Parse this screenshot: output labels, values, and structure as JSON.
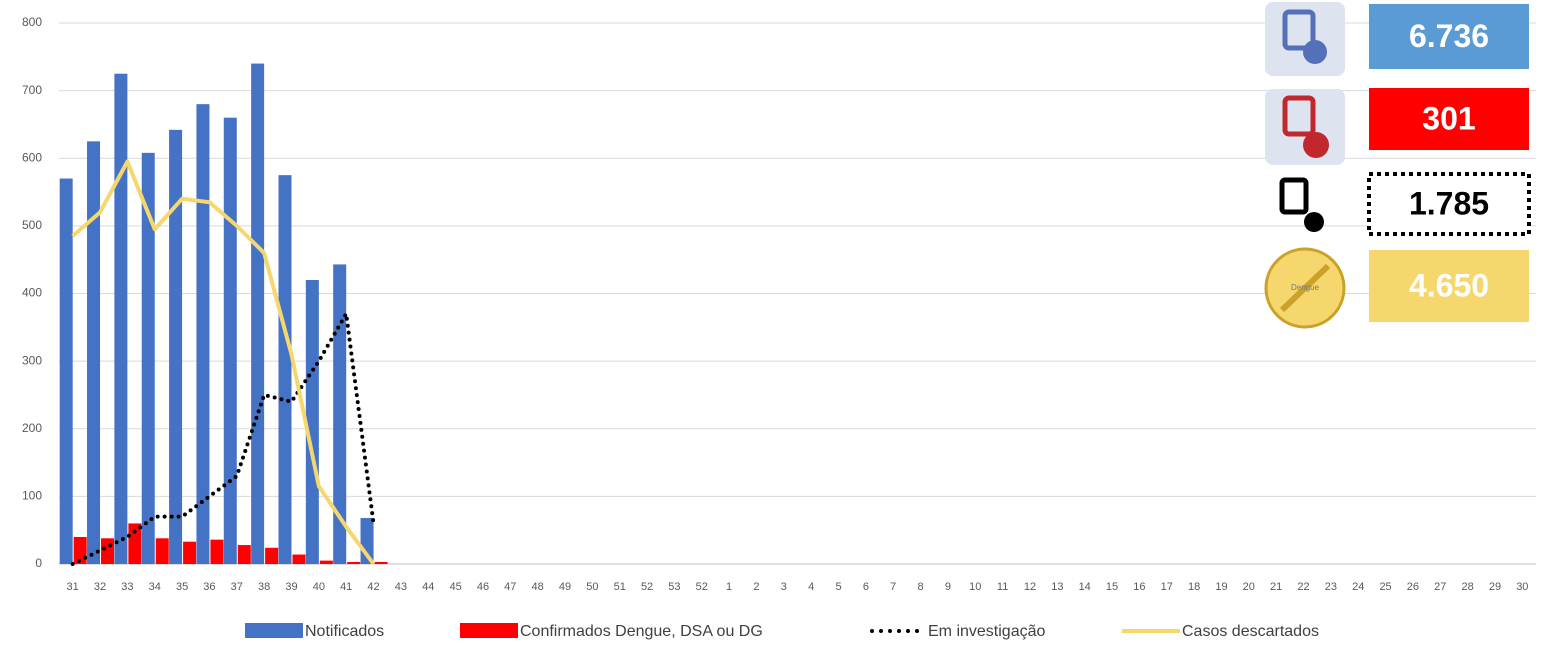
{
  "chart_data": {
    "type": "bar-line",
    "categories": [
      "31",
      "32",
      "33",
      "34",
      "35",
      "36",
      "37",
      "38",
      "39",
      "40",
      "41",
      "42",
      "43",
      "44",
      "45",
      "46",
      "47",
      "48",
      "49",
      "50",
      "51",
      "52",
      "53",
      "52",
      "1",
      "2",
      "3",
      "4",
      "5",
      "6",
      "7",
      "8",
      "9",
      "10",
      "11",
      "12",
      "13",
      "14",
      "15",
      "16",
      "17",
      "18",
      "19",
      "20",
      "21",
      "22",
      "23",
      "24",
      "25",
      "26",
      "27",
      "28",
      "29",
      "30"
    ],
    "series": [
      {
        "name": "Notificados",
        "color": "#4472c4",
        "kind": "bar",
        "values": [
          570,
          625,
          725,
          608,
          642,
          680,
          660,
          740,
          575,
          420,
          443,
          68,
          null,
          null,
          null,
          null,
          null,
          null,
          null,
          null,
          null,
          null,
          null,
          null,
          null,
          null,
          null,
          null,
          null,
          null,
          null,
          null,
          null,
          null,
          null,
          null,
          null,
          null,
          null,
          null,
          null,
          null,
          null,
          null,
          null,
          null,
          null,
          null,
          null,
          null,
          null,
          null,
          null,
          null
        ]
      },
      {
        "name": "Confirmados Dengue, DSA ou DG",
        "color": "#ff0000",
        "kind": "bar",
        "values": [
          40,
          38,
          60,
          38,
          33,
          36,
          28,
          24,
          14,
          5,
          3,
          3,
          null,
          null,
          null,
          null,
          null,
          null,
          null,
          null,
          null,
          null,
          null,
          null,
          null,
          null,
          null,
          null,
          null,
          null,
          null,
          null,
          null,
          null,
          null,
          null,
          null,
          null,
          null,
          null,
          null,
          null,
          null,
          null,
          null,
          null,
          null,
          null,
          null,
          null,
          null,
          null,
          null,
          null
        ]
      },
      {
        "name": "Em investigação",
        "color": "#000000",
        "kind": "dotted-line",
        "values": [
          0,
          20,
          40,
          70,
          70,
          100,
          130,
          250,
          240,
          300,
          370,
          60,
          null,
          null,
          null,
          null,
          null,
          null,
          null,
          null,
          null,
          null,
          null,
          null,
          null,
          null,
          null,
          null,
          null,
          null,
          null,
          null,
          null,
          null,
          null,
          null,
          null,
          null,
          null,
          null,
          null,
          null,
          null,
          null,
          null,
          null,
          null,
          null,
          null,
          null,
          null,
          null,
          null,
          null
        ]
      },
      {
        "name": "Casos descartados",
        "color": "#f5d76e",
        "kind": "line",
        "values": [
          485,
          520,
          595,
          495,
          540,
          535,
          500,
          460,
          310,
          115,
          55,
          0,
          null,
          null,
          null,
          null,
          null,
          null,
          null,
          null,
          null,
          null,
          null,
          null,
          null,
          null,
          null,
          null,
          null,
          null,
          null,
          null,
          null,
          null,
          null,
          null,
          null,
          null,
          null,
          null,
          null,
          null,
          null,
          null,
          null,
          null,
          null,
          null,
          null,
          null,
          null,
          null,
          null,
          null
        ]
      }
    ],
    "ylim": [
      0,
      800
    ],
    "yticks": [
      0,
      100,
      200,
      300,
      400,
      500,
      600,
      700,
      800
    ],
    "grid": true
  },
  "kpis": [
    {
      "value": "6.736",
      "color": "#5b9bd5"
    },
    {
      "value": "301",
      "color": "#ff0000"
    },
    {
      "value": "1.785",
      "color": "#ffffff"
    },
    {
      "value": "4.650",
      "color": "#f5d76e"
    }
  ],
  "icon_label": "Dengue"
}
